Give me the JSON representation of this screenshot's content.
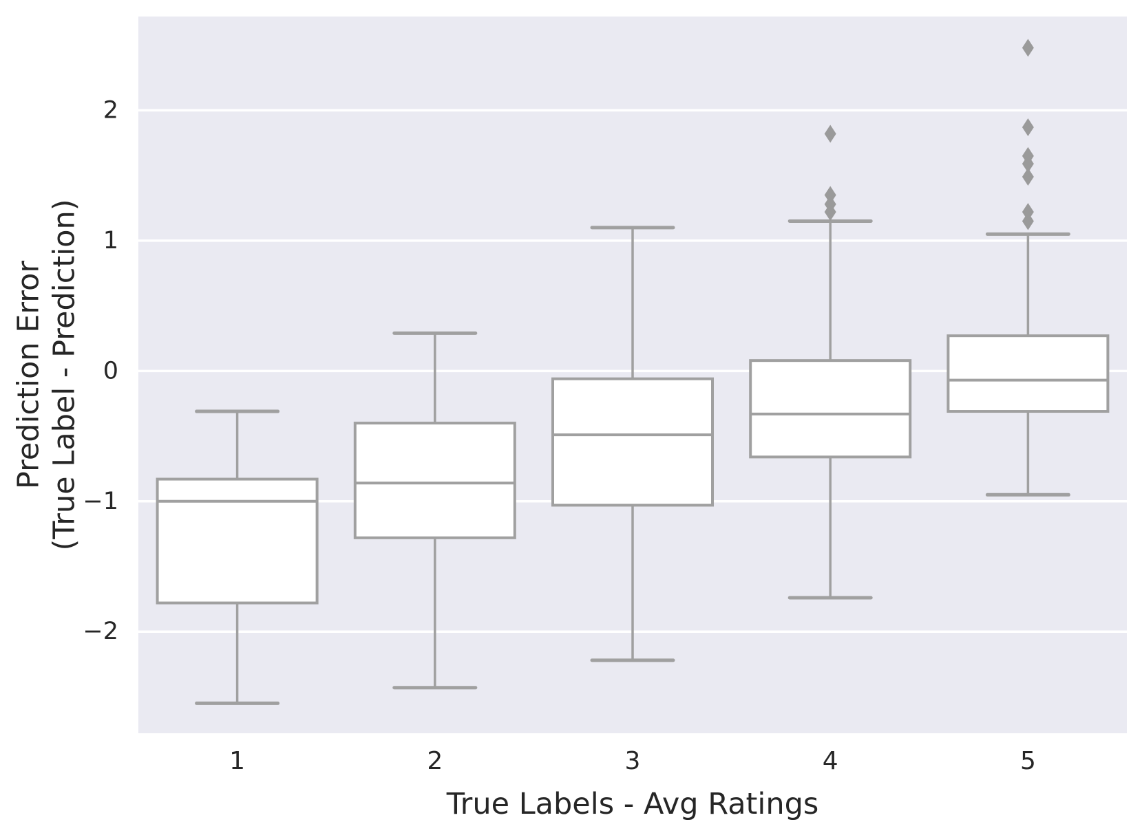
{
  "figure": {
    "background_color": "#ffffff"
  },
  "chart_data": {
    "type": "boxplot",
    "title": "",
    "xlabel": "True Labels - Avg Ratings",
    "ylabel_line1": "Prediction Error",
    "ylabel_line2": "(True Label - Prediction)",
    "categories": [
      "1",
      "2",
      "3",
      "4",
      "5"
    ],
    "yticks": [
      -2,
      -1,
      0,
      1,
      2
    ],
    "ytick_labels": [
      "−2",
      "−1",
      "0",
      "1",
      "2"
    ],
    "ylim": [
      -2.78,
      2.72
    ],
    "grid": "horizontal white lines, on",
    "legend": "none",
    "colors": {
      "plot_background": "#eaeaf2",
      "gridline": "#ffffff",
      "box_edge": "#a0a0a0",
      "box_fill": "#ffffff",
      "outlier_fill": "#9a9a9a",
      "text": "#262626"
    },
    "series": [
      {
        "category": "1",
        "whisker_low": -2.55,
        "q1": -1.78,
        "median": -1.0,
        "q3": -0.83,
        "whisker_high": -0.31,
        "outliers": []
      },
      {
        "category": "2",
        "whisker_low": -2.43,
        "q1": -1.28,
        "median": -0.86,
        "q3": -0.4,
        "whisker_high": 0.29,
        "outliers": []
      },
      {
        "category": "3",
        "whisker_low": -2.22,
        "q1": -1.03,
        "median": -0.49,
        "q3": -0.06,
        "whisker_high": 1.1,
        "outliers": []
      },
      {
        "category": "4",
        "whisker_low": -1.74,
        "q1": -0.66,
        "median": -0.33,
        "q3": 0.08,
        "whisker_high": 1.15,
        "outliers": [
          1.22,
          1.28,
          1.35,
          1.82
        ]
      },
      {
        "category": "5",
        "whisker_low": -0.95,
        "q1": -0.31,
        "median": -0.07,
        "q3": 0.27,
        "whisker_high": 1.05,
        "outliers": [
          1.15,
          1.22,
          1.49,
          1.59,
          1.65,
          1.87,
          2.48
        ]
      }
    ]
  }
}
